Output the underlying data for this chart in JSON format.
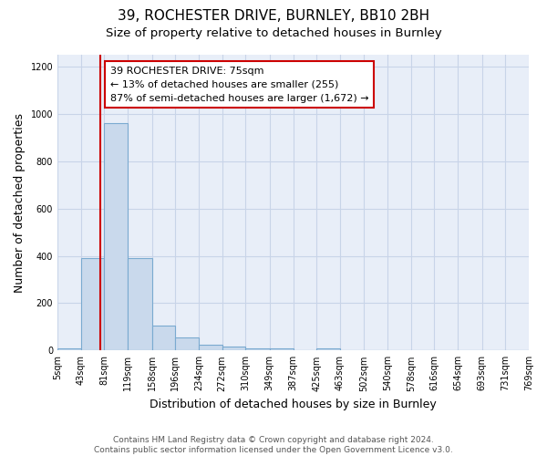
{
  "title1": "39, ROCHESTER DRIVE, BURNLEY, BB10 2BH",
  "title2": "Size of property relative to detached houses in Burnley",
  "xlabel": "Distribution of detached houses by size in Burnley",
  "ylabel": "Number of detached properties",
  "bin_edges": [
    5,
    43,
    81,
    119,
    158,
    196,
    234,
    272,
    310,
    349,
    387,
    425,
    463,
    502,
    540,
    578,
    616,
    654,
    693,
    731,
    769
  ],
  "counts": [
    10,
    390,
    960,
    390,
    105,
    55,
    25,
    15,
    10,
    10,
    0,
    10,
    0,
    0,
    0,
    0,
    0,
    0,
    0,
    0
  ],
  "bar_color": "#c9d9ec",
  "bar_edge_color": "#7aaad0",
  "red_line_x": 75,
  "annotation_line1": "39 ROCHESTER DRIVE: 75sqm",
  "annotation_line2": "← 13% of detached houses are smaller (255)",
  "annotation_line3": "87% of semi-detached houses are larger (1,672) →",
  "annotation_box_color": "white",
  "annotation_box_edge_color": "#cc0000",
  "red_line_color": "#cc0000",
  "ylim": [
    0,
    1250
  ],
  "yticks": [
    0,
    200,
    400,
    600,
    800,
    1000,
    1200
  ],
  "bg_color": "#e8eef8",
  "grid_color": "#c8d4e8",
  "footer_text": "Contains HM Land Registry data © Crown copyright and database right 2024.\nContains public sector information licensed under the Open Government Licence v3.0.",
  "title1_fontsize": 11,
  "title2_fontsize": 9.5,
  "annotation_fontsize": 8,
  "tick_fontsize": 7,
  "ylabel_fontsize": 9,
  "xlabel_fontsize": 9
}
